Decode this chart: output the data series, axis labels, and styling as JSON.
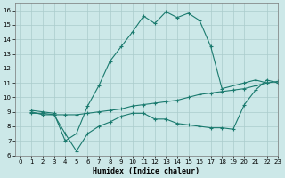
{
  "xlabel": "Humidex (Indice chaleur)",
  "bg_color": "#cce8e8",
  "grid_color": "#aacccc",
  "line_color": "#1a7a6e",
  "xlim": [
    -0.5,
    23
  ],
  "ylim": [
    6,
    16.5
  ],
  "xticks": [
    0,
    1,
    2,
    3,
    4,
    5,
    6,
    7,
    8,
    9,
    10,
    11,
    12,
    13,
    14,
    15,
    16,
    17,
    18,
    19,
    20,
    21,
    22,
    23
  ],
  "yticks": [
    6,
    7,
    8,
    9,
    10,
    11,
    12,
    13,
    14,
    15,
    16
  ],
  "series": [
    {
      "x": [
        1,
        2,
        3,
        4,
        5,
        6,
        7,
        8,
        9,
        10,
        11,
        12,
        13,
        14,
        15,
        16,
        17,
        18,
        20,
        21,
        22
      ],
      "y": [
        9.1,
        9.0,
        8.9,
        7.0,
        7.5,
        9.4,
        10.8,
        12.5,
        13.5,
        14.5,
        15.6,
        15.1,
        15.9,
        15.5,
        15.8,
        15.3,
        13.5,
        10.6,
        11.0,
        11.2,
        11.0
      ]
    },
    {
      "x": [
        1,
        2,
        3,
        4,
        5,
        6,
        7,
        8,
        9,
        10,
        11,
        12,
        13,
        14,
        15,
        16,
        17,
        18,
        19,
        20,
        21,
        22,
        23
      ],
      "y": [
        9.0,
        8.8,
        8.8,
        7.5,
        6.3,
        7.5,
        8.0,
        8.3,
        8.7,
        8.9,
        8.9,
        8.5,
        8.5,
        8.2,
        8.1,
        8.0,
        7.9,
        7.9,
        7.8,
        9.5,
        10.5,
        11.2,
        11.0
      ]
    },
    {
      "x": [
        1,
        2,
        3,
        4,
        5,
        6,
        7,
        8,
        9,
        10,
        11,
        12,
        13,
        14,
        15,
        16,
        17,
        18,
        19,
        20,
        21,
        22,
        23
      ],
      "y": [
        8.9,
        8.9,
        8.8,
        8.8,
        8.8,
        8.9,
        9.0,
        9.1,
        9.2,
        9.4,
        9.5,
        9.6,
        9.7,
        9.8,
        10.0,
        10.2,
        10.3,
        10.4,
        10.5,
        10.6,
        10.8,
        11.0,
        11.1
      ]
    }
  ]
}
